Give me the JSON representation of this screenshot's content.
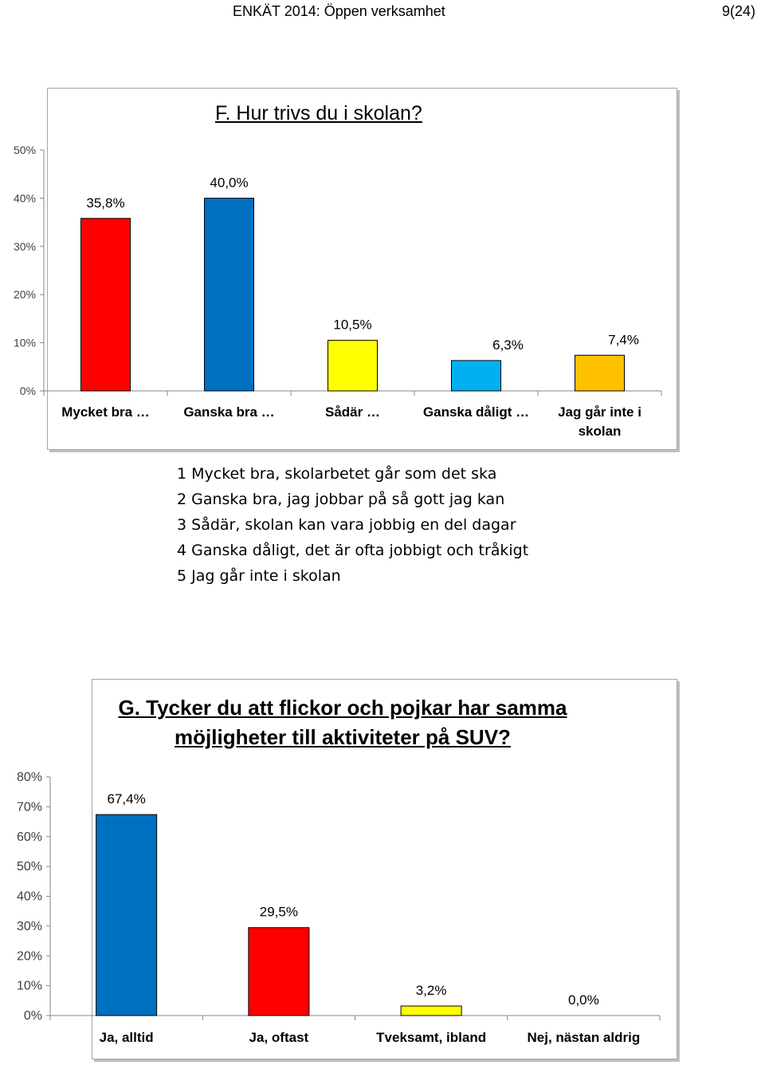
{
  "header": {
    "title": "ENKÄT 2014: Öppen verksamhet",
    "page": "9(24)"
  },
  "legend": [
    "1 Mycket bra, skolarbetet går som det ska",
    "2 Ganska bra, jag jobbar på så gott jag kan",
    "3 Sådär, skolan kan vara jobbig en del dagar",
    "4 Ganska dåligt, det är ofta jobbigt och tråkigt",
    "5 Jag går inte i skolan"
  ],
  "chart_data": [
    {
      "type": "bar",
      "title": "F. Hur trivs du i skolan?",
      "categories": [
        "Mycket bra …",
        "Ganska bra …",
        "Sådär …",
        "Ganska dåligt …",
        "Jag går inte i skolan"
      ],
      "values": [
        35.8,
        40.0,
        10.5,
        6.3,
        7.4
      ],
      "data_labels": [
        "35,8%",
        "40,0%",
        "10,5%",
        "6,3%",
        "7,4%"
      ],
      "colors": [
        "#ff0000",
        "#0070c0",
        "#ffff00",
        "#00b0f0",
        "#ffc000"
      ],
      "yticks": [
        "0%",
        "10%",
        "20%",
        "30%",
        "40%",
        "50%"
      ],
      "ylim": [
        0,
        50
      ],
      "grid": false
    },
    {
      "type": "bar",
      "title": "G. Tycker du att flickor och pojkar har samma möjligheter till aktiviteter på SUV?",
      "categories": [
        "Ja, alltid",
        "Ja, oftast",
        "Tveksamt, ibland",
        "Nej, nästan aldrig"
      ],
      "values": [
        67.4,
        29.5,
        3.2,
        0.0
      ],
      "data_labels": [
        "67,4%",
        "29,5%",
        "3,2%",
        "0,0%"
      ],
      "colors": [
        "#0070c0",
        "#ff0000",
        "#ffff00",
        "#92d050"
      ],
      "yticks": [
        "0%",
        "10%",
        "20%",
        "30%",
        "40%",
        "50%",
        "60%",
        "70%",
        "80%"
      ],
      "ylim": [
        0,
        80
      ],
      "grid": false
    }
  ]
}
